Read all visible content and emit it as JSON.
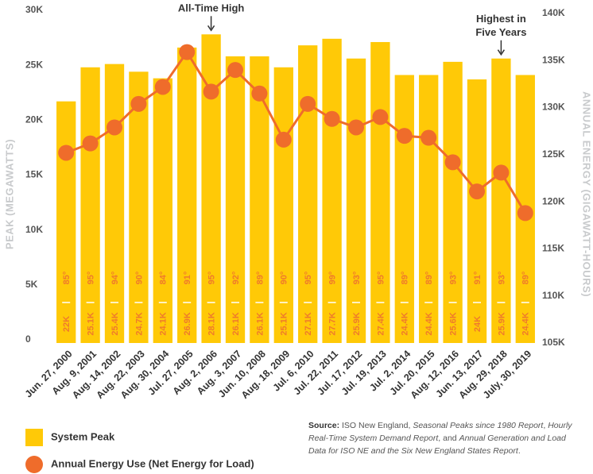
{
  "chart_data": {
    "type": "bar-line",
    "categories": [
      "Jun. 27, 2000",
      "Aug. 9, 2001",
      "Aug. 14, 2002",
      "Aug. 22, 2003",
      "Aug. 30, 2004",
      "Jul. 27, 2005",
      "Aug. 2, 2006",
      "Aug. 3, 2007",
      "Jun. 10, 2008",
      "Aug. 18, 2009",
      "Jul. 6, 2010",
      "Jul. 22, 2011",
      "Jul. 17, 2012",
      "Jul. 19, 2013",
      "Jul. 2, 2014",
      "Jul. 20, 2015",
      "Aug. 12, 2016",
      "Jun. 13, 2017",
      "Aug. 29, 2018",
      "July, 30, 2019"
    ],
    "series": [
      {
        "name": "System Peak",
        "color": "#ffc907",
        "kind": "bar",
        "axis": "y",
        "values": [
          22000,
          25100,
          25400,
          24700,
          24100,
          26900,
          28100,
          26100,
          26100,
          25100,
          27100,
          27700,
          25900,
          27400,
          24400,
          24400,
          25600,
          24000,
          25900,
          24400
        ],
        "value_labels": [
          "22K",
          "25.1K",
          "25.4K",
          "24.7K",
          "24.1K",
          "26.9K",
          "28.1K",
          "26.1K",
          "26.1K",
          "25.1K",
          "27.1K",
          "27.7K",
          "25.9K",
          "27.4K",
          "24.4K",
          "24.4K",
          "25.6K",
          "24K",
          "25.9K",
          "24.4K"
        ],
        "temperatures": [
          "85°",
          "95°",
          "94°",
          "90°",
          "84°",
          "91°",
          "95°",
          "92°",
          "89°",
          "90°",
          "95°",
          "99°",
          "93°",
          "95°",
          "89°",
          "89°",
          "93°",
          "91°",
          "93°",
          "89°"
        ]
      },
      {
        "name": "Annual Energy Use (Net Energy for Load)",
        "color": "#ef6c2b",
        "kind": "line",
        "axis": "y2",
        "values": [
          125200,
          126200,
          127900,
          130400,
          132200,
          135900,
          131700,
          134000,
          131500,
          126600,
          130400,
          128800,
          127900,
          129000,
          127000,
          126800,
          124200,
          121100,
          123100,
          118800
        ]
      }
    ],
    "ylabel": "PEAK (MEGAWATTS)",
    "y2label": "ANNUAL ENERGY (GIGAWATT-HOURS)",
    "ylim": [
      0,
      30000
    ],
    "yticks": [
      0,
      {
        "value": 5000,
        "label": "5K"
      },
      {
        "value": 10000,
        "label": "10K"
      },
      {
        "value": 15000,
        "label": "15K"
      },
      {
        "value": 20000,
        "label": "20K"
      },
      {
        "value": 25000,
        "label": "25K"
      },
      {
        "value": 30000,
        "label": "30K"
      }
    ],
    "y2lim": [
      105000,
      140000
    ],
    "y2ticks": [
      {
        "value": 105000,
        "label": "105K"
      },
      {
        "value": 110000,
        "label": "110K"
      },
      {
        "value": 115000,
        "label": "115K"
      },
      {
        "value": 120000,
        "label": "120K"
      },
      {
        "value": 125000,
        "label": "125K"
      },
      {
        "value": 130000,
        "label": "130K"
      },
      {
        "value": 135000,
        "label": "135K"
      },
      {
        "value": 140000,
        "label": "140K"
      }
    ],
    "annotations": [
      {
        "lines": [
          "All-Time High"
        ],
        "index": 6
      },
      {
        "lines": [
          "Highest in",
          "Five Years"
        ],
        "index": 18
      }
    ],
    "grid": false,
    "source": [
      {
        "text": "Source:",
        "style": "bold"
      },
      {
        "text": " ISO New England, ",
        "style": "normal"
      },
      {
        "text": "Seasonal Peaks since 1980 Report",
        "style": "italic"
      },
      {
        "text": ", ",
        "style": "normal"
      },
      {
        "text": "Hourly Real-Time System Demand Report",
        "style": "italic"
      },
      {
        "text": ", and ",
        "style": "normal"
      },
      {
        "text": "Annual Generation and Load Data for ISO NE and the Six New England States Report",
        "style": "italic"
      },
      {
        "text": ".",
        "style": "normal"
      }
    ]
  }
}
